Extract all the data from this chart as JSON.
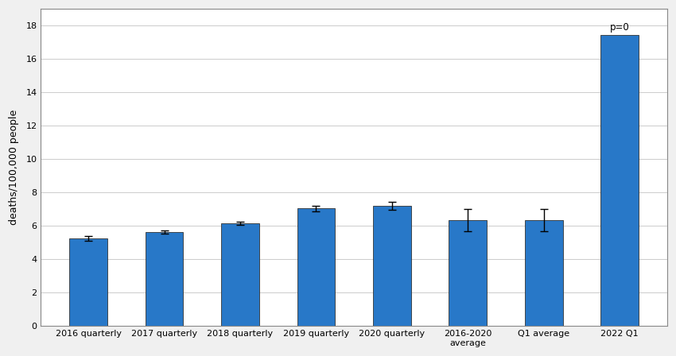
{
  "categories": [
    "2016 quarterly",
    "2017 quarterly",
    "2018 quarterly",
    "2019 quarterly",
    "2020 quarterly",
    "2016-2020\naverage",
    "Q1 average",
    "2022 Q1"
  ],
  "values": [
    5.25,
    5.65,
    6.15,
    7.05,
    7.2,
    6.35,
    6.35,
    17.45
  ],
  "errors": [
    0.13,
    0.1,
    0.1,
    0.17,
    0.22,
    0.65,
    0.65,
    0.0
  ],
  "bar_color": "#2878C8",
  "ylabel": "deaths/100,000 people",
  "ylim": [
    0,
    19
  ],
  "yticks": [
    0,
    2,
    4,
    6,
    8,
    10,
    12,
    14,
    16,
    18
  ],
  "annotation_text": "p=0",
  "annotation_bar_index": 7,
  "background_color": "#ffffff",
  "outer_bg": "#f0f0f0",
  "grid_color": "#cccccc",
  "figsize": [
    8.5,
    4.48
  ],
  "dpi": 100,
  "bar_width": 0.5,
  "tick_fontsize": 8.0,
  "ylabel_fontsize": 9.0,
  "annot_fontsize": 8.5
}
